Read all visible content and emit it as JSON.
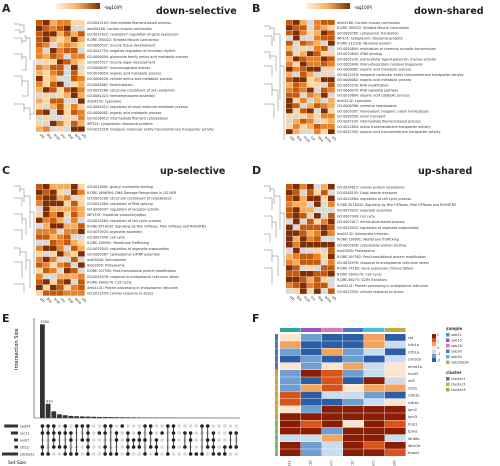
{
  "colors": {
    "ramp": [
      "#fef3e6",
      "#fbd6a2",
      "#f6ad5c",
      "#e7822a",
      "#c45a0a",
      "#7f2d04"
    ],
    "grey": "#d9d9d9",
    "teal": "#2aa7a0",
    "blue": "#4a78b8",
    "purple": "#9b57b0",
    "pink": "#e572b4",
    "cyan": "#43c1e3",
    "mustard": "#c9a93a"
  },
  "legend_scale_label": "-log10(P)",
  "panels": {
    "A": {
      "label": "A",
      "title": "down-selective",
      "terms": [
        "GO:0045103: intermediate filament-based process",
        "dme04260: Cardiac muscle contraction",
        "GO:0032822: cerebellum regulation of gene expression",
        "R-DRE-390522: Striated Muscle Contraction",
        "GO:0060537: muscle tissue development",
        "GO:0042754: negative regulation of circadian rhythm",
        "GO:0006094: glutamine family amino acid metabolic process",
        "GO:0007517: muscle organ development",
        "GO:0006497: monooxygenase activity",
        "GO:0016054: organic acid metabolic process",
        "GO:0006520: cellular amino acid metabolic process",
        "GO:0005667: Keratinization",
        "GO:0035280: structural constituent of skin epidermis",
        "GO:0061024: hemidesmosome assembly",
        "dre04142: Lysosome",
        "GO:0062012: regulation of small molecule metabolic process",
        "GO:0006082: organic acid metabolic process",
        "GO:0016913: intermediate filament cytoskeleton",
        "WP324: Cytoplasmic ribosomal proteins",
        "GO:0015318: inorganic molecular entity transmembrane transporter activity"
      ],
      "cols": [
        "sth",
        "bta",
        "msh",
        "ssc",
        "dsa",
        "ame",
        "sfs"
      ]
    },
    "B": {
      "label": "B",
      "title": "down-shared",
      "terms": [
        "dre04260: Cardiac muscle contraction",
        "R-DRE-390522: Striated Muscle Contraction",
        "GO:0000785: cytoplasmic translation",
        "WP324: Cytoplasmic ribosomal proteins",
        "R-DRE-112316: Neuronal System",
        "GO:0050804: modulation of chemical synaptic transmission",
        "GO:0019843: rRNA binding",
        "GO:0005230: extracellular ligand-gated ion channel activity",
        "GO:0005840: ribonucleoprotein complex biogenesis",
        "GO:0006082: organic acid metabolic process",
        "GO:0015318: inorganic molecular entity transmembrane transporter activity",
        "GO:0006082: organic acid metabolic process",
        "GO:0005230: RNA modification",
        "GO:0060070: RNA signaling pathway",
        "GO:0010604: organic acid catabolic process",
        "dre04142: Lysosome",
        "GO:0006586: chemical homeostasis",
        "GO:0005007: monovalent inorganic cation homeostasis",
        "GO:0008509: anion transport",
        "GO:0045103: intermediate filament-based process",
        "GO:0022804: active transmembrane transporter activity",
        "GO:0032592: organic acid transmembrane transporter activity"
      ],
      "cols": [
        "sth",
        "bta",
        "msh",
        "ssc",
        "dsa",
        "ame",
        "sfs"
      ]
    },
    "C": {
      "label": "C",
      "title": "up-selective",
      "terms": [
        "GO:0019001: guanyl nucleotide binding",
        "R-DRE-5696394: DNA Damage Recognition in GG-NER",
        "GO:0005200: structural constituent of cytoskeleton",
        "GO:0043484: regulation of RNA splicing",
        "GO:0006337: regulation of receptor activity",
        "WP1335: Oxidative phosphorylation",
        "GO:0010564: regulation of cell cycle process",
        "R-DRE-8718542: Signaling by Rho GTPases, Miro GTPases and RHOBTB3",
        "GO:0070925: organelle assembly",
        "GO:0007049: cell cycle",
        "R-DRE-199991: Membrane Trafficking",
        "GO:0033043: regulation of organelle organization",
        "GO:0000387: spliceosomal snRNP assembly",
        "dre03040: Spliceosome",
        "dre03050: Proteasome",
        "R-DRE-597592: Post-translational protein modification",
        "GO:0034976: response to endoplasmic reticulum stress",
        "R-DRE-1640170: Cell Cycle",
        "dre04141: Protein processing in endoplasmic reticulum",
        "GO:0033554: cellular response to stress"
      ],
      "cols": [
        "sth",
        "bta",
        "msh",
        "ssc",
        "dsa",
        "ame",
        "sfs"
      ]
    },
    "D": {
      "label": "D",
      "title": "up-shared",
      "terms": [
        "GO:0034613: cellular protein localization",
        "GO:0048193: Golgi vesicle transport",
        "GO:0010564: regulation of cell cycle process",
        "R-DRE-8718542: Signaling by Rho GTPases, Miro GTPases and RHOBTB3",
        "GO:0070925: organelle assembly",
        "GO:0007049: cell cycle",
        "GO:0007017: microtubule-based process",
        "GO:0033043: regulation of organelle organization",
        "dre05132: Salmonella infection",
        "R-DRE-199991: Membrane Trafficking",
        "GO:0005856: cytoskeletal protein binding",
        "dre03050: Proteasome",
        "R-DRE-597592: Post-translational protein modification",
        "GO:0034976: response to endoplasmic reticulum stress",
        "R-DRE-74160: Gene expression (Transcription)",
        "R-DRE-1640170: Cell Cycle",
        "R-DRE-69275: G2/M Transition",
        "dre04141: Protein processing in endoplasmic reticulum",
        "GO:0033554: cellular response to stress"
      ],
      "cols": [
        "sth",
        "bta",
        "msh",
        "ssc",
        "dsa",
        "ame",
        "sfs"
      ]
    },
    "E": {
      "label": "E",
      "ylabel": "Intersection Size",
      "xlabel": "Set Size",
      "sets": [
        "sad24",
        "ssc11",
        "oxi07",
        "sfs12",
        "sd20a2s"
      ],
      "bars": [
        5350,
        810,
        380,
        210,
        160,
        120,
        100,
        90,
        80,
        70,
        60,
        55,
        50,
        45,
        40,
        38,
        35,
        30,
        28,
        25,
        22,
        20,
        18,
        16,
        15,
        14,
        13,
        12,
        11,
        10,
        9,
        8,
        7,
        6,
        5
      ],
      "bar_labels": [
        "5350",
        "810"
      ],
      "set_sizes": [
        3100,
        1600,
        900,
        800,
        3600
      ]
    },
    "F": {
      "label": "F",
      "rows": [
        "sst",
        "lcfb1b",
        "lcfb1a",
        "clmb1b",
        "amrd1b",
        "mxd3",
        "vtf2",
        "rbl1b",
        "rdbl1b",
        "rdb1b",
        "lpm2",
        "lpm3",
        "tmb1",
        "tpma",
        "ldrd8a",
        "ldhb1b",
        "tmod1"
      ],
      "cols": [
        "sad11",
        "ssc16",
        "sacm",
        "ssc12",
        "ssch",
        "sfs26"
      ],
      "sample_legend_title": "sample",
      "samples": [
        "sab11",
        "sab15",
        "sab16",
        "sab30",
        "sab34",
        "sab35a28"
      ],
      "cluster_legend_title": "cluster",
      "clusters": [
        "cluster1",
        "cluster2",
        "cluster3"
      ],
      "scale_ticks": [
        "2",
        "1",
        "0",
        "-1",
        "-2"
      ]
    }
  }
}
